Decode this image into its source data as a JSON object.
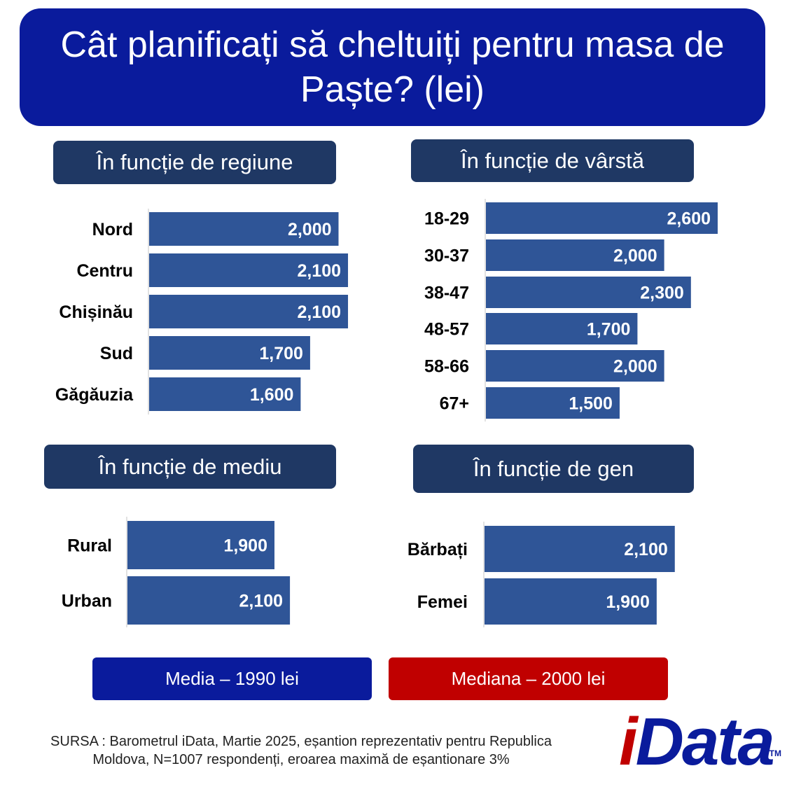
{
  "title": "Cât planificați să cheltuiți pentru masa de Paște? (lei)",
  "colors": {
    "title_bg": "#0a1b9c",
    "header_bg": "#1f3864",
    "bar": "#2f5597",
    "mean_bg": "#0a1b9c",
    "median_bg": "#c00000"
  },
  "chart_data": [
    {
      "type": "bar",
      "orientation": "horizontal",
      "title": "În funcție de regiune",
      "categories": [
        "Nord",
        "Centru",
        "Chișinău",
        "Sud",
        "Găgăuzia"
      ],
      "values": [
        2000,
        2100,
        2100,
        1700,
        1600
      ],
      "value_labels": [
        "2,000",
        "2,100",
        "2,100",
        "1,700",
        "1,600"
      ]
    },
    {
      "type": "bar",
      "orientation": "horizontal",
      "title": "În funcție de vârstă",
      "categories": [
        "18-29",
        "30-37",
        "38-47",
        "48-57",
        "58-66",
        "67+"
      ],
      "values": [
        2600,
        2000,
        2300,
        1700,
        2000,
        1500
      ],
      "value_labels": [
        "2,600",
        "2,000",
        "2,300",
        "1,700",
        "2,000",
        "1,500"
      ]
    },
    {
      "type": "bar",
      "orientation": "horizontal",
      "title": "În funcție de mediu",
      "categories": [
        "Rural",
        "Urban"
      ],
      "values": [
        1900,
        2100
      ],
      "value_labels": [
        "1,900",
        "2,100"
      ]
    },
    {
      "type": "bar",
      "orientation": "horizontal",
      "title": "În funcție de gen",
      "categories": [
        "Bărbați",
        "Femei"
      ],
      "values": [
        2100,
        1900
      ],
      "value_labels": [
        "2,100",
        "1,900"
      ]
    }
  ],
  "stats": {
    "mean": "Media – 1990 lei",
    "median": "Mediana  – 2000 lei"
  },
  "source": {
    "line1": "SURSA : Barometrul iData, Martie 2025, eșantion reprezentativ pentru Republica",
    "line2": "Moldova, N=1007 respondenți, eroarea maximă de eșantionare 3%"
  },
  "logo": {
    "text_i": "i",
    "text_rest": "Data",
    "tm": "TM"
  }
}
